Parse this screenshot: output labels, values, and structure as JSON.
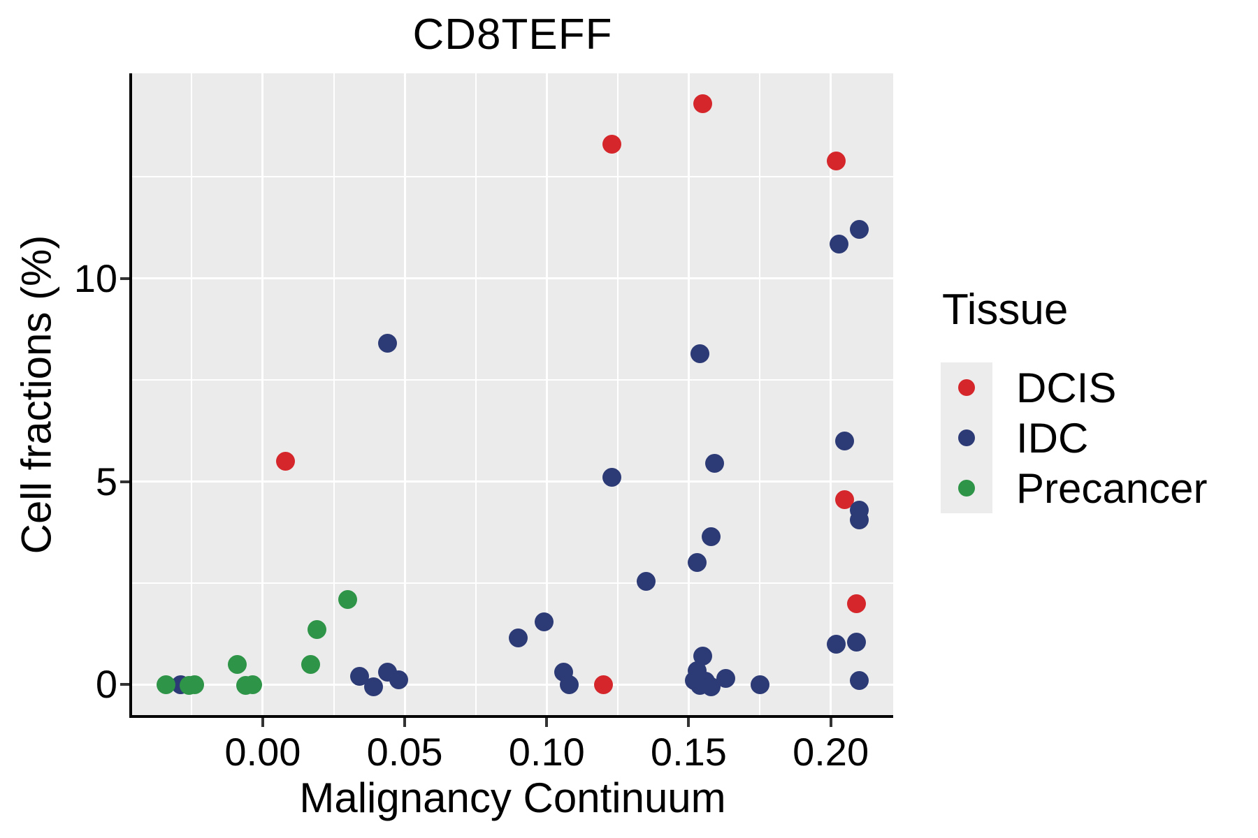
{
  "chart": {
    "title": "CD8TEFF",
    "x_axis_title": "Malignancy Continuum",
    "y_axis_title": "Cell fractions (%)"
  },
  "legend": {
    "title": "Tissue",
    "entries": [
      {
        "label": "DCIS",
        "color": "#d5272b"
      },
      {
        "label": "IDC",
        "color": "#2c3a76"
      },
      {
        "label": "Precancer",
        "color": "#2e9447"
      }
    ]
  },
  "chart_data": {
    "type": "scatter",
    "title": "CD8TEFF",
    "xlabel": "Malignancy Continuum",
    "ylabel": "Cell fractions (%)",
    "xlim": [
      -0.046,
      0.222
    ],
    "ylim": [
      -0.75,
      15.05
    ],
    "x_ticks": {
      "values": [
        0.0,
        0.05,
        0.1,
        0.15,
        0.2
      ],
      "labels": [
        "0.00",
        "0.05",
        "0.10",
        "0.15",
        "0.20"
      ],
      "minor": [
        -0.025,
        0.025,
        0.075,
        0.125,
        0.175
      ]
    },
    "y_ticks": {
      "values": [
        0,
        5,
        10
      ],
      "labels": [
        "0",
        "5",
        "10"
      ],
      "minor": [
        2.5,
        7.5,
        12.5
      ]
    },
    "grid": "white-on-grey, major and minor",
    "legend_position": "right",
    "series": [
      {
        "name": "DCIS",
        "color": "#d5272b",
        "points": [
          [
            0.155,
            14.3
          ],
          [
            0.123,
            13.3
          ],
          [
            0.202,
            12.9
          ],
          [
            0.008,
            5.5
          ],
          [
            0.205,
            4.55
          ],
          [
            0.209,
            2.0
          ],
          [
            0.12,
            0.0
          ]
        ]
      },
      {
        "name": "IDC",
        "color": "#2c3a76",
        "points": [
          [
            0.21,
            11.2
          ],
          [
            0.203,
            10.85
          ],
          [
            0.044,
            8.4
          ],
          [
            0.154,
            8.15
          ],
          [
            0.205,
            6.0
          ],
          [
            0.159,
            5.45
          ],
          [
            0.123,
            5.1
          ],
          [
            0.21,
            4.3
          ],
          [
            0.21,
            4.05
          ],
          [
            0.158,
            3.65
          ],
          [
            0.153,
            3.0
          ],
          [
            0.135,
            2.55
          ],
          [
            0.099,
            1.55
          ],
          [
            0.09,
            1.15
          ],
          [
            0.209,
            1.05
          ],
          [
            0.202,
            1.0
          ],
          [
            0.155,
            0.7
          ],
          [
            0.153,
            0.35
          ],
          [
            0.106,
            0.3
          ],
          [
            0.044,
            0.3
          ],
          [
            0.034,
            0.2
          ],
          [
            0.163,
            0.15
          ],
          [
            0.048,
            0.12
          ],
          [
            0.21,
            0.1
          ],
          [
            0.152,
            0.1
          ],
          [
            0.156,
            0.08
          ],
          [
            0.108,
            0.0
          ],
          [
            0.175,
            0.0
          ],
          [
            -0.029,
            0.0
          ],
          [
            0.154,
            -0.02
          ],
          [
            0.039,
            -0.05
          ],
          [
            0.158,
            -0.05
          ]
        ]
      },
      {
        "name": "Precancer",
        "color": "#2e9447",
        "points": [
          [
            -0.034,
            0.0
          ],
          [
            -0.026,
            -0.02
          ],
          [
            -0.024,
            0.0
          ],
          [
            -0.009,
            0.5
          ],
          [
            -0.006,
            -0.02
          ],
          [
            -0.0035,
            0.0
          ],
          [
            0.017,
            0.5
          ],
          [
            0.019,
            1.35
          ],
          [
            0.03,
            2.1
          ]
        ]
      }
    ]
  }
}
